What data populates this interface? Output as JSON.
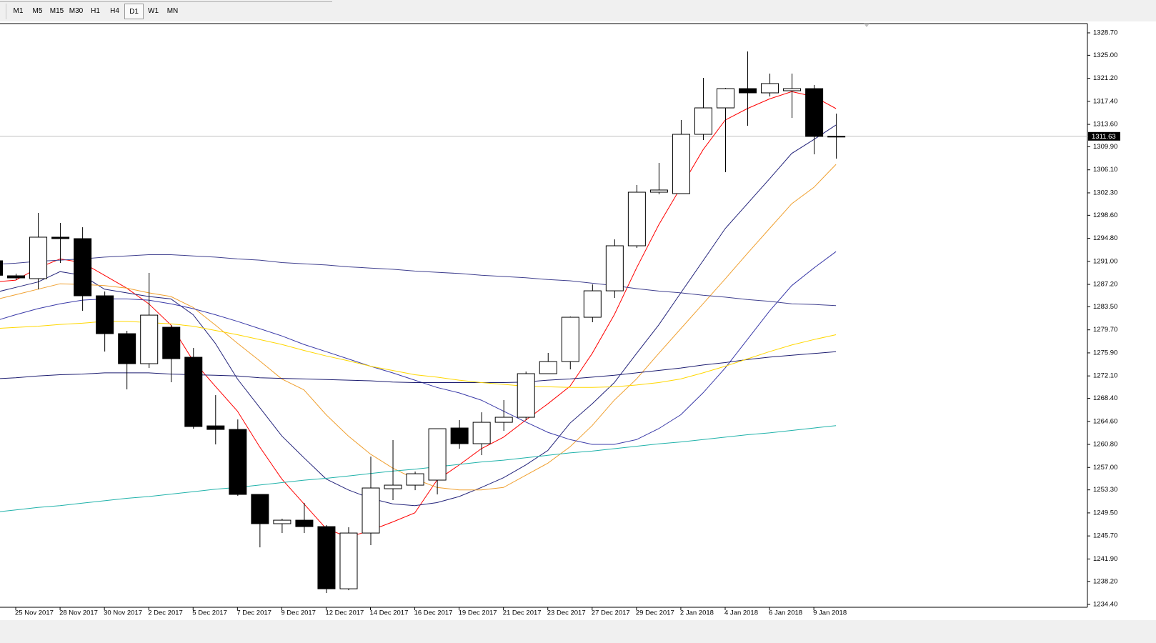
{
  "toolbar": {
    "timeframes": [
      "M1",
      "M5",
      "M15",
      "M30",
      "H1",
      "H4",
      "D1",
      "W1",
      "MN"
    ],
    "active": "D1"
  },
  "chart_data": {
    "type": "candlestick",
    "categories": [
      null,
      "25 Nov 2017",
      null,
      "28 Nov 2017",
      null,
      "30 Nov 2017",
      null,
      "2 Dec 2017",
      null,
      "5 Dec 2017",
      null,
      "7 Dec 2017",
      null,
      "9 Dec 2017",
      null,
      "12 Dec 2017",
      null,
      "14 Dec 2017",
      null,
      "16 Dec 2017",
      null,
      "19 Dec 2017",
      null,
      "21 Dec 2017",
      null,
      "23 Dec 2017",
      null,
      "27 Dec 2017",
      null,
      "29 Dec 2017",
      null,
      "2 Jan 2018",
      null,
      "4 Jan 2018",
      null,
      "6 Jan 2018",
      null,
      "9 Jan 2018",
      null
    ],
    "open": [
      1291.1,
      1288.62,
      1288.15,
      1294.99,
      1294.75,
      1285.32,
      1279.07,
      1274.12,
      1280.13,
      1275.18,
      1263.86,
      1263.27,
      1252.55,
      1247.72,
      1248.3,
      1247.24,
      1236.98,
      1246.18,
      1253.49,
      1254.08,
      1254.91,
      1263.51,
      1260.92,
      1264.45,
      1265.28,
      1272.47,
      1274.47,
      1281.78,
      1286.14,
      1293.57,
      1302.41,
      1302.18,
      1311.96,
      1316.32,
      1319.5,
      1318.8,
      1319.15,
      1319.5,
      1311.63
    ],
    "high": [
      1291.5,
      1288.97,
      1298.99,
      1297.34,
      1296.63,
      1286.03,
      1279.54,
      1289.09,
      1280.49,
      1276.71,
      1268.93,
      1264.92,
      1252.55,
      1248.54,
      1251.13,
      1247.48,
      1247.13,
      1258.79,
      1261.51,
      1256.32,
      1263.39,
      1264.81,
      1266.1,
      1268.11,
      1272.82,
      1275.89,
      1281.9,
      1287.2,
      1294.63,
      1303.59,
      1307.24,
      1314.32,
      1321.27,
      1319.62,
      1325.63,
      1321.98,
      1321.98,
      1320.09,
      1315.38
    ],
    "low": [
      1288.3,
      1287.91,
      1286.38,
      1290.74,
      1282.84,
      1276.12,
      1269.88,
      1273.41,
      1271.06,
      1263.39,
      1260.8,
      1252.31,
      1243.82,
      1246.18,
      1246.18,
      1236.28,
      1236.75,
      1244.18,
      1251.61,
      1253.25,
      1252.55,
      1260.09,
      1259.03,
      1263.04,
      1264.81,
      1272.47,
      1273.18,
      1280.96,
      1284.96,
      1293.21,
      1302.06,
      1302.18,
      1311.02,
      1305.71,
      1313.37,
      1318.21,
      1314.67,
      1308.66,
      1307.95
    ],
    "close": [
      1288.7,
      1288.27,
      1294.99,
      1294.75,
      1285.32,
      1279.07,
      1274.12,
      1282.13,
      1274.95,
      1263.75,
      1263.27,
      1252.55,
      1247.72,
      1248.3,
      1247.24,
      1236.98,
      1246.18,
      1253.61,
      1254.08,
      1255.96,
      1263.39,
      1260.92,
      1264.45,
      1265.28,
      1272.47,
      1274.47,
      1281.78,
      1286.14,
      1293.57,
      1302.41,
      1302.77,
      1311.96,
      1316.32,
      1319.5,
      1318.8,
      1320.33,
      1319.5,
      1311.61,
      1311.63
    ],
    "up_color": "#ffffff",
    "down_color": "#000000",
    "edge_color": "#000000",
    "series": [
      {
        "color": "#ff0000",
        "values": [
          1287.6,
          1287.9,
          1289.9,
          1291.4,
          1290.8,
          1288.7,
          1286.6,
          1284.0,
          1280.5,
          1274.6,
          1270.4,
          1266.3,
          1260.4,
          1255.1,
          1251.0,
          1246.9,
          1245.5,
          1246.6,
          1248.0,
          1249.5,
          1254.9,
          1257.4,
          1260.1,
          1262.0,
          1264.8,
          1267.5,
          1270.4,
          1275.8,
          1282.2,
          1289.9,
          1297.0,
          1303.2,
          1309.4,
          1314.3,
          1316.2,
          1317.8,
          1319.0,
          1318.2,
          1316.2
        ]
      },
      {
        "color": "#23237a",
        "values": [
          1285.8,
          1286.7,
          1287.6,
          1289.3,
          1288.7,
          1286.4,
          1285.8,
          1285.2,
          1284.8,
          1282.2,
          1277.5,
          1271.6,
          1266.9,
          1262.2,
          1258.6,
          1255.1,
          1253.3,
          1251.9,
          1251.0,
          1250.7,
          1251.2,
          1252.2,
          1253.7,
          1255.3,
          1257.4,
          1259.8,
          1264.3,
          1267.5,
          1271.0,
          1275.8,
          1280.5,
          1285.8,
          1291.1,
          1296.4,
          1300.5,
          1304.6,
          1308.8,
          1311.1,
          1313.5
        ]
      },
      {
        "color": "#f0a030",
        "values": [
          1284.6,
          1285.5,
          1286.4,
          1287.3,
          1287.2,
          1287.0,
          1286.6,
          1285.8,
          1285.2,
          1283.4,
          1280.5,
          1277.5,
          1274.6,
          1271.6,
          1269.8,
          1265.7,
          1262.2,
          1259.2,
          1256.9,
          1255.1,
          1253.7,
          1253.3,
          1253.3,
          1253.7,
          1255.7,
          1257.7,
          1260.4,
          1263.9,
          1268.1,
          1271.6,
          1275.8,
          1279.9,
          1284.0,
          1288.1,
          1292.3,
          1296.4,
          1300.5,
          1303.2,
          1307.0
        ]
      },
      {
        "color": "#3a3aa8",
        "values": [
          1281.1,
          1282.2,
          1283.2,
          1284.0,
          1284.6,
          1284.8,
          1284.8,
          1284.6,
          1284.0,
          1283.2,
          1282.2,
          1281.1,
          1279.9,
          1278.7,
          1277.3,
          1276.1,
          1274.9,
          1273.7,
          1272.6,
          1271.4,
          1270.2,
          1269.3,
          1268.1,
          1266.3,
          1264.5,
          1262.8,
          1261.6,
          1260.8,
          1260.8,
          1261.6,
          1263.4,
          1265.7,
          1269.3,
          1273.4,
          1278.1,
          1282.8,
          1287.0,
          1289.9,
          1292.6
        ]
      },
      {
        "color": "#40408f",
        "values": [
          1290.5,
          1290.7,
          1291.0,
          1291.2,
          1291.4,
          1291.7,
          1291.9,
          1292.1,
          1292.1,
          1291.9,
          1291.7,
          1291.4,
          1291.2,
          1290.8,
          1290.6,
          1290.4,
          1290.1,
          1289.9,
          1289.7,
          1289.4,
          1289.2,
          1289.0,
          1288.7,
          1288.5,
          1288.3,
          1288.0,
          1287.8,
          1287.4,
          1287.0,
          1286.5,
          1286.1,
          1285.8,
          1285.4,
          1285.1,
          1284.7,
          1284.4,
          1284.0,
          1283.9,
          1283.7
        ]
      },
      {
        "color": "#1c1c70",
        "values": [
          1271.6,
          1271.8,
          1272.1,
          1272.3,
          1272.4,
          1272.6,
          1272.6,
          1272.6,
          1272.4,
          1272.3,
          1272.2,
          1272.1,
          1271.8,
          1271.7,
          1271.6,
          1271.5,
          1271.4,
          1271.3,
          1271.1,
          1271.0,
          1271.0,
          1271.0,
          1271.0,
          1271.0,
          1271.1,
          1271.4,
          1271.6,
          1271.9,
          1272.2,
          1272.6,
          1273.0,
          1273.4,
          1273.9,
          1274.3,
          1274.8,
          1275.2,
          1275.5,
          1275.8,
          1276.1
        ]
      },
      {
        "color": "#ffd700",
        "values": [
          1279.9,
          1280.1,
          1280.3,
          1280.6,
          1280.8,
          1281.1,
          1281.1,
          1280.9,
          1280.7,
          1280.3,
          1279.6,
          1278.9,
          1278.1,
          1277.3,
          1276.3,
          1275.4,
          1274.6,
          1273.7,
          1273.0,
          1272.3,
          1271.9,
          1271.4,
          1271.0,
          1270.7,
          1270.4,
          1270.3,
          1270.2,
          1270.2,
          1270.3,
          1270.6,
          1271.0,
          1271.6,
          1272.6,
          1273.7,
          1274.9,
          1276.1,
          1277.2,
          1278.1,
          1278.9
        ]
      },
      {
        "color": "#20b2aa",
        "values": [
          1249.6,
          1250.0,
          1250.4,
          1250.7,
          1251.1,
          1251.5,
          1251.9,
          1252.2,
          1252.6,
          1253.0,
          1253.4,
          1253.7,
          1254.1,
          1254.5,
          1254.9,
          1255.2,
          1255.6,
          1256.0,
          1256.4,
          1256.7,
          1257.1,
          1257.5,
          1257.9,
          1258.2,
          1258.6,
          1259.0,
          1259.4,
          1259.7,
          1260.1,
          1260.5,
          1260.9,
          1261.2,
          1261.6,
          1262.0,
          1262.4,
          1262.7,
          1263.1,
          1263.5,
          1263.9
        ]
      }
    ],
    "ylim": [
      1233.93,
      1330.23
    ],
    "yticks": [
      {
        "value": 1328.7,
        "label": "1328.70"
      },
      {
        "value": 1325.0,
        "label": "1325.00"
      },
      {
        "value": 1321.2,
        "label": "1321.20"
      },
      {
        "value": 1317.4,
        "label": "1317.40"
      },
      {
        "value": 1313.6,
        "label": "1313.60"
      },
      {
        "value": 1309.9,
        "label": "1309.90"
      },
      {
        "value": 1306.1,
        "label": "1306.10"
      },
      {
        "value": 1302.3,
        "label": "1302.30"
      },
      {
        "value": 1298.6,
        "label": "1298.60"
      },
      {
        "value": 1294.8,
        "label": "1294.80"
      },
      {
        "value": 1291.0,
        "label": "1291.00"
      },
      {
        "value": 1287.2,
        "label": "1287.20"
      },
      {
        "value": 1283.5,
        "label": "1283.50"
      },
      {
        "value": 1279.7,
        "label": "1279.70"
      },
      {
        "value": 1275.9,
        "label": "1275.90"
      },
      {
        "value": 1272.1,
        "label": "1272.10"
      },
      {
        "value": 1268.4,
        "label": "1268.40"
      },
      {
        "value": 1264.6,
        "label": "1264.60"
      },
      {
        "value": 1260.8,
        "label": "1260.80"
      },
      {
        "value": 1257.0,
        "label": "1257.00"
      },
      {
        "value": 1253.3,
        "label": "1253.30"
      },
      {
        "value": 1249.5,
        "label": "1249.50"
      },
      {
        "value": 1245.7,
        "label": "1245.70"
      },
      {
        "value": 1241.9,
        "label": "1241.90"
      },
      {
        "value": 1238.2,
        "label": "1238.20"
      },
      {
        "value": 1234.4,
        "label": "1234.40"
      }
    ],
    "current_price": 1311.63,
    "current_price_color": "#c0c0c0"
  }
}
